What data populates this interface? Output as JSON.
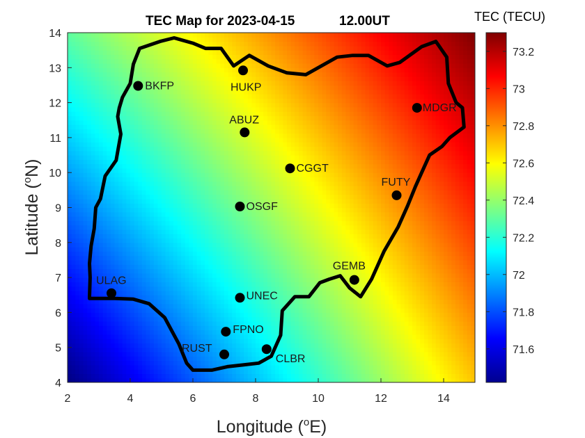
{
  "chart_data": {
    "type": "heatmap",
    "title": "TEC Map for 2023-04-15",
    "time_label": "12.00UT",
    "xlabel": "Longitude (",
    "xlabel_sup": "o",
    "xlabel_tail": "E)",
    "ylabel": "Latitude (",
    "ylabel_sup": "o",
    "ylabel_tail": "N)",
    "xlim": [
      2,
      15
    ],
    "ylim": [
      4,
      14
    ],
    "xticks": [
      2,
      4,
      6,
      8,
      10,
      12,
      14
    ],
    "yticks": [
      4,
      5,
      6,
      7,
      8,
      9,
      10,
      11,
      12,
      13,
      14
    ],
    "colormap": "jet",
    "colorbar": {
      "title": "TEC (TECU)",
      "min": 71.42,
      "max": 73.3,
      "ticks": [
        71.6,
        71.8,
        72,
        72.2,
        72.4,
        72.6,
        72.8,
        73,
        73.2
      ]
    },
    "field_model": {
      "description": "TEC increases toward the north-east",
      "corner_values": {
        "bottom_left": 71.42,
        "bottom_right": 72.7,
        "top_left": 72.3,
        "top_right": 73.3
      }
    },
    "stations": [
      {
        "name": "BKFP",
        "lon": 4.25,
        "lat": 12.48
      },
      {
        "name": "HUKP",
        "lon": 7.6,
        "lat": 12.92
      },
      {
        "name": "ABUZ",
        "lon": 7.65,
        "lat": 11.15
      },
      {
        "name": "CGGT",
        "lon": 9.1,
        "lat": 10.12
      },
      {
        "name": "MDGR",
        "lon": 13.15,
        "lat": 11.85
      },
      {
        "name": "FUTY",
        "lon": 12.5,
        "lat": 9.35
      },
      {
        "name": "OSGF",
        "lon": 7.5,
        "lat": 9.03
      },
      {
        "name": "GEMB",
        "lon": 11.15,
        "lat": 6.93
      },
      {
        "name": "ULAG",
        "lon": 3.4,
        "lat": 6.55
      },
      {
        "name": "UNEC",
        "lon": 7.5,
        "lat": 6.42
      },
      {
        "name": "FPNO",
        "lon": 7.05,
        "lat": 5.45
      },
      {
        "name": "RUST",
        "lon": 7.0,
        "lat": 4.8
      },
      {
        "name": "CLBR",
        "lon": 8.35,
        "lat": 4.95
      }
    ],
    "boundary": [
      [
        2.7,
        6.45
      ],
      [
        2.72,
        7.0
      ],
      [
        2.7,
        7.4
      ],
      [
        2.75,
        7.9
      ],
      [
        2.85,
        8.4
      ],
      [
        2.9,
        9.0
      ],
      [
        3.05,
        9.25
      ],
      [
        3.2,
        9.9
      ],
      [
        3.55,
        10.35
      ],
      [
        3.6,
        10.6
      ],
      [
        3.7,
        11.1
      ],
      [
        3.6,
        11.6
      ],
      [
        3.65,
        11.85
      ],
      [
        3.75,
        12.15
      ],
      [
        4.0,
        12.55
      ],
      [
        4.1,
        13.1
      ],
      [
        4.3,
        13.55
      ],
      [
        4.95,
        13.75
      ],
      [
        5.4,
        13.85
      ],
      [
        6.0,
        13.7
      ],
      [
        6.4,
        13.55
      ],
      [
        6.9,
        13.55
      ],
      [
        7.3,
        13.05
      ],
      [
        7.8,
        13.35
      ],
      [
        8.4,
        13.05
      ],
      [
        9.0,
        12.85
      ],
      [
        9.6,
        12.8
      ],
      [
        10.1,
        13.05
      ],
      [
        10.6,
        13.3
      ],
      [
        11.1,
        13.35
      ],
      [
        11.6,
        13.35
      ],
      [
        12.2,
        13.05
      ],
      [
        12.6,
        13.15
      ],
      [
        13.3,
        13.6
      ],
      [
        13.75,
        13.75
      ],
      [
        14.1,
        13.3
      ],
      [
        14.15,
        12.55
      ],
      [
        14.4,
        12.0
      ],
      [
        14.6,
        11.85
      ],
      [
        14.65,
        11.3
      ],
      [
        14.2,
        11.0
      ],
      [
        13.95,
        10.75
      ],
      [
        13.55,
        10.5
      ],
      [
        13.3,
        10.0
      ],
      [
        13.1,
        9.6
      ],
      [
        12.85,
        9.05
      ],
      [
        12.55,
        8.45
      ],
      [
        12.1,
        7.75
      ],
      [
        11.9,
        7.35
      ],
      [
        11.7,
        6.95
      ],
      [
        11.35,
        6.45
      ],
      [
        11.0,
        6.7
      ],
      [
        10.7,
        7.05
      ],
      [
        10.35,
        6.95
      ],
      [
        10.05,
        6.85
      ],
      [
        9.7,
        6.45
      ],
      [
        9.25,
        6.45
      ],
      [
        8.85,
        6.05
      ],
      [
        8.8,
        5.35
      ],
      [
        8.5,
        4.75
      ],
      [
        8.1,
        4.55
      ],
      [
        7.6,
        4.5
      ],
      [
        7.1,
        4.45
      ],
      [
        6.6,
        4.35
      ],
      [
        6.0,
        4.35
      ],
      [
        5.8,
        4.55
      ],
      [
        5.55,
        5.1
      ],
      [
        5.1,
        5.85
      ],
      [
        4.6,
        6.25
      ],
      [
        4.1,
        6.38
      ],
      [
        3.5,
        6.4
      ],
      [
        2.7,
        6.4
      ]
    ]
  }
}
